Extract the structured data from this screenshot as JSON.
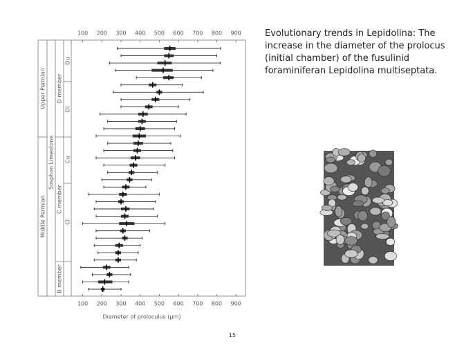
{
  "chart_data": {
    "type": "range",
    "xlabel": "Diameter of proloculus (μm)",
    "xlim": [
      40,
      950
    ],
    "xticks": [
      100,
      200,
      300,
      400,
      500,
      600,
      700,
      800,
      900
    ],
    "low": [
      280,
      300,
      240,
      270,
      380,
      300,
      260,
      300,
      300,
      190,
      230,
      210,
      170,
      230,
      210,
      170,
      210,
      230,
      200,
      210,
      130,
      170,
      160,
      170,
      100,
      170,
      170,
      160,
      180,
      160,
      90,
      150,
      100,
      130
    ],
    "high": [
      820,
      800,
      820,
      780,
      720,
      620,
      730,
      660,
      600,
      640,
      590,
      580,
      610,
      560,
      570,
      580,
      530,
      490,
      460,
      430,
      500,
      480,
      470,
      490,
      530,
      450,
      410,
      400,
      390,
      380,
      340,
      350,
      340,
      300
    ],
    "mean": [
      555,
      550,
      530,
      520,
      550,
      465,
      500,
      480,
      445,
      415,
      410,
      400,
      395,
      390,
      385,
      375,
      365,
      355,
      345,
      325,
      310,
      300,
      325,
      320,
      330,
      310,
      320,
      290,
      285,
      285,
      225,
      240,
      215,
      205
    ],
    "box_low": [
      525,
      525,
      490,
      460,
      520,
      445,
      485,
      460,
      425,
      390,
      390,
      375,
      360,
      365,
      365,
      350,
      345,
      340,
      330,
      305,
      290,
      285,
      300,
      300,
      290,
      295,
      305,
      270,
      270,
      270,
      205,
      225,
      180,
      195
    ],
    "box_high": [
      585,
      575,
      565,
      570,
      575,
      485,
      515,
      500,
      465,
      440,
      430,
      425,
      430,
      415,
      405,
      400,
      385,
      370,
      360,
      345,
      330,
      315,
      345,
      340,
      370,
      325,
      335,
      310,
      300,
      300,
      245,
      255,
      255,
      215
    ],
    "color": "#333333",
    "strata": {
      "periods": [
        "Upper Permian",
        "Middle Permian"
      ],
      "formation": "Sosphon Limestone",
      "members": [
        "D member",
        "C member",
        "B member"
      ],
      "units": [
        "Du",
        "Dl",
        "Cu",
        "Cl"
      ]
    }
  },
  "caption": "Evolutionary trends in Lepidolina: The increase in the diameter of the prolocus (initial chamber) of the fusulinid foraminiferan Lepidolina multiseptata.",
  "page_number": "15"
}
